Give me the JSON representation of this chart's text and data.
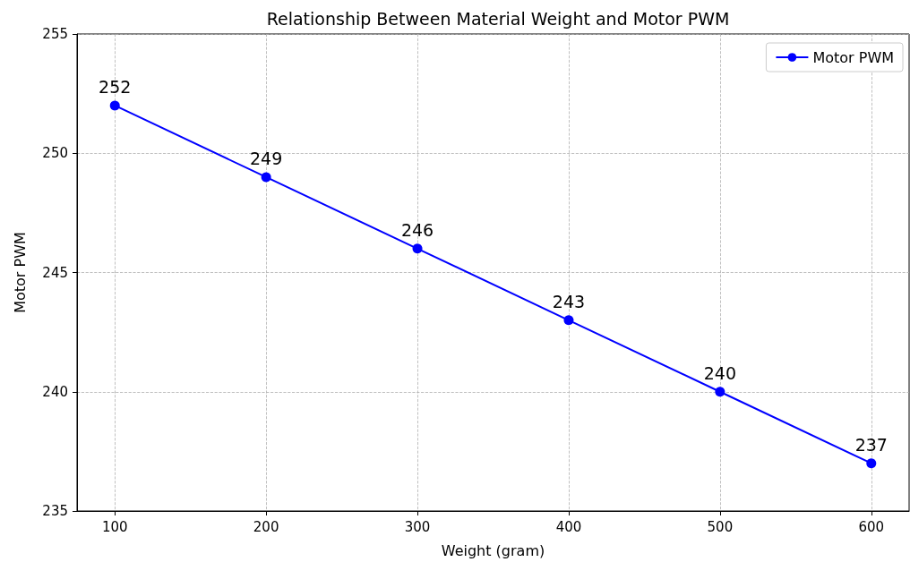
{
  "chart_data": {
    "type": "line",
    "title": "Relationship Between Material Weight and Motor PWM",
    "xlabel": "Weight (gram)",
    "ylabel": "Motor PWM",
    "x": [
      100,
      200,
      300,
      400,
      500,
      600
    ],
    "series": [
      {
        "name": "Motor PWM",
        "color": "#0000ff",
        "values": [
          252,
          249,
          246,
          243,
          240,
          237
        ]
      }
    ],
    "xlim": [
      75,
      625
    ],
    "xticks": [
      100,
      200,
      300,
      400,
      500,
      600
    ],
    "ylim": [
      235,
      255
    ],
    "yticks": [
      235,
      240,
      245,
      250,
      255
    ],
    "grid": true,
    "legend": "top right",
    "marker": "circle",
    "line_style": "solid",
    "data_labels": true
  }
}
